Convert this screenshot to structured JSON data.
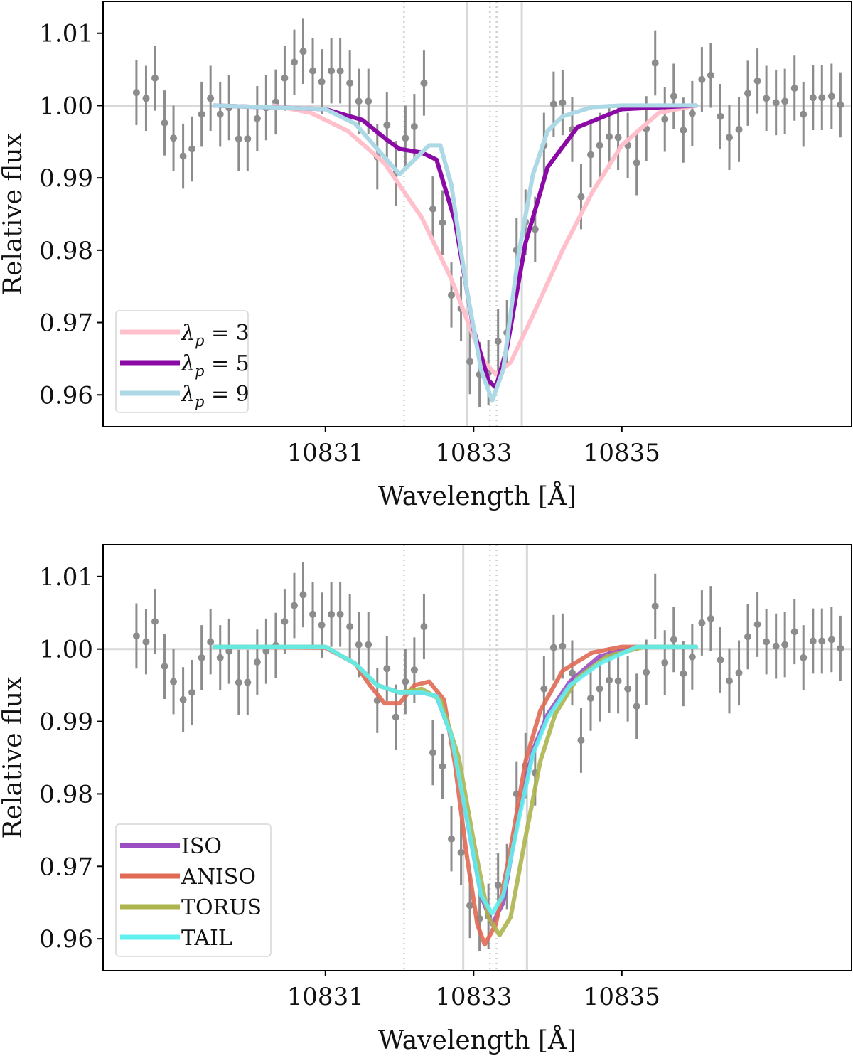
{
  "chart_data": [
    {
      "type": "line",
      "panel": "top",
      "xlabel": "Wavelength [Å]",
      "ylabel": "Relative flux",
      "xlim": [
        10828.0,
        10838.1
      ],
      "ylim": [
        0.9556,
        1.0144
      ],
      "xticks": [
        10831,
        10833,
        10835
      ],
      "xtick_labels": [
        "10831",
        "10833",
        "10835"
      ],
      "yticks": [
        0.96,
        0.97,
        0.98,
        0.99,
        1.0,
        1.01
      ],
      "ytick_labels": [
        "0.96",
        "0.97",
        "0.98",
        "0.99",
        "1.00",
        "1.01"
      ],
      "hline": 1.0,
      "vlines_solid": [
        10832.91,
        10833.65
      ],
      "vlines_dotted": [
        10832.06,
        10833.22,
        10833.31
      ],
      "legend_location": "lower-left",
      "series": [
        {
          "name": "λp = 3",
          "legend_prefix": "λ",
          "legend_sub": "p",
          "legend_suffix": " = 3",
          "color": "#ffc0cb",
          "x": [
            10830.3,
            10830.8,
            10831.3,
            10831.8,
            10832.3,
            10832.7,
            10833.0,
            10833.15,
            10833.3,
            10833.5,
            10833.8,
            10834.2,
            10834.6,
            10835.0,
            10835.5,
            10836.0
          ],
          "y": [
            1.0,
            0.999,
            0.9965,
            0.992,
            0.9845,
            0.976,
            0.968,
            0.9645,
            0.9628,
            0.9645,
            0.971,
            0.98,
            0.988,
            0.9945,
            0.999,
            1.0
          ]
        },
        {
          "name": "λp = 5",
          "legend_prefix": "λ",
          "legend_sub": "p",
          "legend_suffix": " = 5",
          "color": "#8b0aa5",
          "x": [
            10829.5,
            10831.0,
            10831.5,
            10831.8,
            10832.0,
            10832.3,
            10832.5,
            10832.75,
            10833.0,
            10833.2,
            10833.3,
            10833.45,
            10833.7,
            10834.0,
            10834.4,
            10835.0,
            10836.0
          ],
          "y": [
            1.0,
            0.9995,
            0.998,
            0.9955,
            0.994,
            0.9935,
            0.9925,
            0.984,
            0.969,
            0.962,
            0.961,
            0.9665,
            0.981,
            0.9915,
            0.997,
            0.9995,
            1.0
          ]
        },
        {
          "name": "λp = 9",
          "legend_prefix": "λ",
          "legend_sub": "p",
          "legend_suffix": " = 9",
          "color": "#add8e6",
          "x": [
            10829.5,
            10831.0,
            10831.4,
            10831.7,
            10832.0,
            10832.2,
            10832.4,
            10832.55,
            10832.7,
            10832.9,
            10833.1,
            10833.25,
            10833.4,
            10833.6,
            10833.8,
            10834.0,
            10834.2,
            10834.6,
            10835.0,
            10836.0
          ],
          "y": [
            1.0,
            0.9995,
            0.9975,
            0.994,
            0.9905,
            0.9925,
            0.9945,
            0.9945,
            0.989,
            0.975,
            0.9635,
            0.9592,
            0.9635,
            0.979,
            0.9905,
            0.9965,
            0.9985,
            0.9998,
            1.0,
            1.0
          ]
        }
      ],
      "data_points": {
        "color": "#8c8c8c",
        "x": [
          10828.45,
          10828.58,
          10828.7,
          10828.83,
          10828.95,
          10829.08,
          10829.2,
          10829.33,
          10829.45,
          10829.58,
          10829.7,
          10829.83,
          10829.95,
          10830.08,
          10830.2,
          10830.33,
          10830.45,
          10830.58,
          10830.7,
          10830.83,
          10830.95,
          10831.08,
          10831.2,
          10831.33,
          10831.45,
          10831.58,
          10831.7,
          10831.83,
          10831.95,
          10832.08,
          10832.2,
          10832.33,
          10832.45,
          10832.58,
          10832.7,
          10832.83,
          10832.95,
          10833.08,
          10833.2,
          10833.33,
          10833.45,
          10833.58,
          10833.7,
          10833.83,
          10833.95,
          10834.08,
          10834.2,
          10834.33,
          10834.45,
          10834.58,
          10834.7,
          10834.83,
          10834.95,
          10835.08,
          10835.2,
          10835.33,
          10835.45,
          10835.58,
          10835.7,
          10835.83,
          10835.95,
          10836.08,
          10836.2,
          10836.33,
          10836.45,
          10836.58,
          10836.7,
          10836.83,
          10836.95,
          10837.08,
          10837.2,
          10837.33,
          10837.45,
          10837.58,
          10837.7,
          10837.83,
          10837.95
        ],
        "y": [
          1.0018,
          1.001,
          1.0038,
          0.9976,
          0.9955,
          0.993,
          0.994,
          0.9988,
          1.001,
          0.9988,
          0.9997,
          0.9954,
          0.9954,
          0.9982,
          0.9997,
          1.0005,
          1.0038,
          1.006,
          1.0075,
          1.0048,
          1.0033,
          1.0048,
          1.0048,
          1.0031,
          1.0006,
          1.0006,
          0.9929,
          0.9973,
          0.9906,
          0.9955,
          0.9971,
          1.0031,
          0.9857,
          0.9838,
          0.9738,
          0.9719,
          0.9646,
          0.9628,
          0.9631,
          0.9674,
          0.9686,
          0.98,
          0.9839,
          0.9829,
          0.9945,
          1.0002,
          1.0004,
          0.9967,
          0.9874,
          0.9932,
          0.9945,
          0.9957,
          0.9956,
          0.9945,
          0.9921,
          0.9968,
          1.0059,
          0.9981,
          1.0013,
          0.9966,
          0.9989,
          1.0036,
          1.0042,
          0.9985,
          0.9956,
          0.9967,
          1.0017,
          1.0034,
          1.001,
          1.0004,
          1.0006,
          1.0024,
          0.9988,
          1.0011,
          1.0011,
          1.0013,
          1.0001
        ],
        "yerr": [
          0.0045,
          0.0045,
          0.0045,
          0.0045,
          0.0045,
          0.0045,
          0.0045,
          0.0045,
          0.0045,
          0.0045,
          0.0045,
          0.0045,
          0.0045,
          0.0045,
          0.0045,
          0.0045,
          0.0045,
          0.0045,
          0.0045,
          0.0045,
          0.0045,
          0.0045,
          0.0045,
          0.0045,
          0.0045,
          0.0045,
          0.0045,
          0.0045,
          0.0045,
          0.0045,
          0.0045,
          0.0045,
          0.0045,
          0.0045,
          0.0045,
          0.0045,
          0.0045,
          0.0045,
          0.0045,
          0.0045,
          0.0045,
          0.0045,
          0.0045,
          0.0045,
          0.0045,
          0.0045,
          0.0045,
          0.0045,
          0.0045,
          0.0045,
          0.0045,
          0.0045,
          0.0045,
          0.0045,
          0.0045,
          0.0045,
          0.0045,
          0.0045,
          0.0045,
          0.0045,
          0.0045,
          0.0045,
          0.0045,
          0.0045,
          0.0045,
          0.0045,
          0.0045,
          0.0045,
          0.0045,
          0.0045,
          0.0045,
          0.0045,
          0.0045,
          0.0045,
          0.0045,
          0.0045,
          0.0045
        ]
      }
    },
    {
      "type": "line",
      "panel": "bottom",
      "xlabel": "Wavelength [Å]",
      "ylabel": "Relative flux",
      "xlim": [
        10828.0,
        10838.1
      ],
      "ylim": [
        0.9556,
        1.0144
      ],
      "xticks": [
        10831,
        10833,
        10835
      ],
      "xtick_labels": [
        "10831",
        "10833",
        "10835"
      ],
      "yticks": [
        0.96,
        0.97,
        0.98,
        0.99,
        1.0,
        1.01
      ],
      "ytick_labels": [
        "0.96",
        "0.97",
        "0.98",
        "0.99",
        "1.00",
        "1.01"
      ],
      "hline": 1.0,
      "vlines_solid": [
        10832.86,
        10833.72
      ],
      "vlines_dotted": [
        10832.06,
        10833.22,
        10833.31
      ],
      "legend_location": "lower-left",
      "series": [
        {
          "name": "ISO",
          "color": "#9a4ec2",
          "x": [
            10829.5,
            10831.0,
            10831.4,
            10831.7,
            10832.0,
            10832.3,
            10832.5,
            10832.7,
            10832.9,
            10833.1,
            10833.25,
            10833.4,
            10833.6,
            10833.8,
            10834.0,
            10834.3,
            10834.7,
            10835.2,
            10836.0
          ],
          "y": [
            1.0003,
            1.0003,
            0.998,
            0.995,
            0.994,
            0.994,
            0.9935,
            0.988,
            0.977,
            0.966,
            0.962,
            0.965,
            0.977,
            0.986,
            0.991,
            0.9955,
            0.999,
            1.0003,
            1.0003
          ]
        },
        {
          "name": "ANISO",
          "color": "#e06a54",
          "x": [
            10829.5,
            10831.0,
            10831.4,
            10831.6,
            10831.8,
            10832.0,
            10832.2,
            10832.4,
            10832.6,
            10832.75,
            10832.9,
            10833.05,
            10833.15,
            10833.3,
            10833.5,
            10833.7,
            10833.9,
            10834.2,
            10834.6,
            10835.0,
            10836.0
          ],
          "y": [
            1.0003,
            1.0002,
            0.998,
            0.995,
            0.9925,
            0.9925,
            0.995,
            0.9955,
            0.993,
            0.984,
            0.972,
            0.962,
            0.9592,
            0.962,
            0.9725,
            0.9845,
            0.9915,
            0.997,
            0.9995,
            1.0003,
            1.0003
          ]
        },
        {
          "name": "TORUS",
          "color": "#adb44e",
          "x": [
            10829.5,
            10831.0,
            10831.4,
            10831.7,
            10832.0,
            10832.3,
            10832.55,
            10832.8,
            10833.0,
            10833.2,
            10833.35,
            10833.5,
            10833.7,
            10833.9,
            10834.1,
            10834.4,
            10834.8,
            10835.3,
            10836.0
          ],
          "y": [
            1.0003,
            1.0003,
            0.998,
            0.995,
            0.994,
            0.9945,
            0.993,
            0.985,
            0.9735,
            0.963,
            0.9605,
            0.963,
            0.974,
            0.9845,
            0.991,
            0.996,
            0.999,
            1.0003,
            1.0003
          ]
        },
        {
          "name": "TAIL",
          "color": "#5ff0ef",
          "x": [
            10829.5,
            10831.0,
            10831.4,
            10831.7,
            10832.0,
            10832.3,
            10832.5,
            10832.7,
            10832.9,
            10833.1,
            10833.25,
            10833.4,
            10833.6,
            10833.8,
            10834.0,
            10834.3,
            10834.7,
            10835.2,
            10836.0
          ],
          "y": [
            1.0003,
            1.0003,
            0.998,
            0.995,
            0.994,
            0.994,
            0.9935,
            0.988,
            0.977,
            0.966,
            0.9635,
            0.966,
            0.976,
            0.9855,
            0.9905,
            0.995,
            0.998,
            1.0003,
            1.0003
          ]
        }
      ],
      "data_points": {
        "color": "#8c8c8c",
        "x": [
          10828.45,
          10828.58,
          10828.7,
          10828.83,
          10828.95,
          10829.08,
          10829.2,
          10829.33,
          10829.45,
          10829.58,
          10829.7,
          10829.83,
          10829.95,
          10830.08,
          10830.2,
          10830.33,
          10830.45,
          10830.58,
          10830.7,
          10830.83,
          10830.95,
          10831.08,
          10831.2,
          10831.33,
          10831.45,
          10831.58,
          10831.7,
          10831.83,
          10831.95,
          10832.08,
          10832.2,
          10832.33,
          10832.45,
          10832.58,
          10832.7,
          10832.83,
          10832.95,
          10833.08,
          10833.2,
          10833.33,
          10833.45,
          10833.58,
          10833.7,
          10833.83,
          10833.95,
          10834.08,
          10834.2,
          10834.33,
          10834.45,
          10834.58,
          10834.7,
          10834.83,
          10834.95,
          10835.08,
          10835.2,
          10835.33,
          10835.45,
          10835.58,
          10835.7,
          10835.83,
          10835.95,
          10836.08,
          10836.2,
          10836.33,
          10836.45,
          10836.58,
          10836.7,
          10836.83,
          10836.95,
          10837.08,
          10837.2,
          10837.33,
          10837.45,
          10837.58,
          10837.7,
          10837.83,
          10837.95
        ],
        "y": [
          1.0018,
          1.001,
          1.0038,
          0.9976,
          0.9955,
          0.993,
          0.994,
          0.9988,
          1.001,
          0.9988,
          0.9997,
          0.9954,
          0.9954,
          0.9982,
          0.9997,
          1.0005,
          1.0038,
          1.006,
          1.0075,
          1.0048,
          1.0033,
          1.0048,
          1.0048,
          1.0031,
          1.0006,
          1.0006,
          0.9929,
          0.9973,
          0.9906,
          0.9955,
          0.9971,
          1.0031,
          0.9857,
          0.9838,
          0.9738,
          0.9719,
          0.9646,
          0.9628,
          0.9631,
          0.9674,
          0.9686,
          0.98,
          0.9839,
          0.9829,
          0.9945,
          1.0002,
          1.0004,
          0.9967,
          0.9874,
          0.9932,
          0.9945,
          0.9957,
          0.9956,
          0.9945,
          0.9921,
          0.9968,
          1.0059,
          0.9981,
          1.0013,
          0.9966,
          0.9989,
          1.0036,
          1.0042,
          0.9985,
          0.9956,
          0.9967,
          1.0017,
          1.0034,
          1.001,
          1.0004,
          1.0006,
          1.0024,
          0.9988,
          1.0011,
          1.0011,
          1.0013,
          1.0001
        ],
        "yerr": [
          0.0045,
          0.0045,
          0.0045,
          0.0045,
          0.0045,
          0.0045,
          0.0045,
          0.0045,
          0.0045,
          0.0045,
          0.0045,
          0.0045,
          0.0045,
          0.0045,
          0.0045,
          0.0045,
          0.0045,
          0.0045,
          0.0045,
          0.0045,
          0.0045,
          0.0045,
          0.0045,
          0.0045,
          0.0045,
          0.0045,
          0.0045,
          0.0045,
          0.0045,
          0.0045,
          0.0045,
          0.0045,
          0.0045,
          0.0045,
          0.0045,
          0.0045,
          0.0045,
          0.0045,
          0.0045,
          0.0045,
          0.0045,
          0.0045,
          0.0045,
          0.0045,
          0.0045,
          0.0045,
          0.0045,
          0.0045,
          0.0045,
          0.0045,
          0.0045,
          0.0045,
          0.0045,
          0.0045,
          0.0045,
          0.0045,
          0.0045,
          0.0045,
          0.0045,
          0.0045,
          0.0045,
          0.0045,
          0.0045,
          0.0045,
          0.0045,
          0.0045,
          0.0045,
          0.0045,
          0.0045,
          0.0045,
          0.0045,
          0.0045,
          0.0045,
          0.0045,
          0.0045,
          0.0045,
          0.0045
        ]
      }
    }
  ]
}
